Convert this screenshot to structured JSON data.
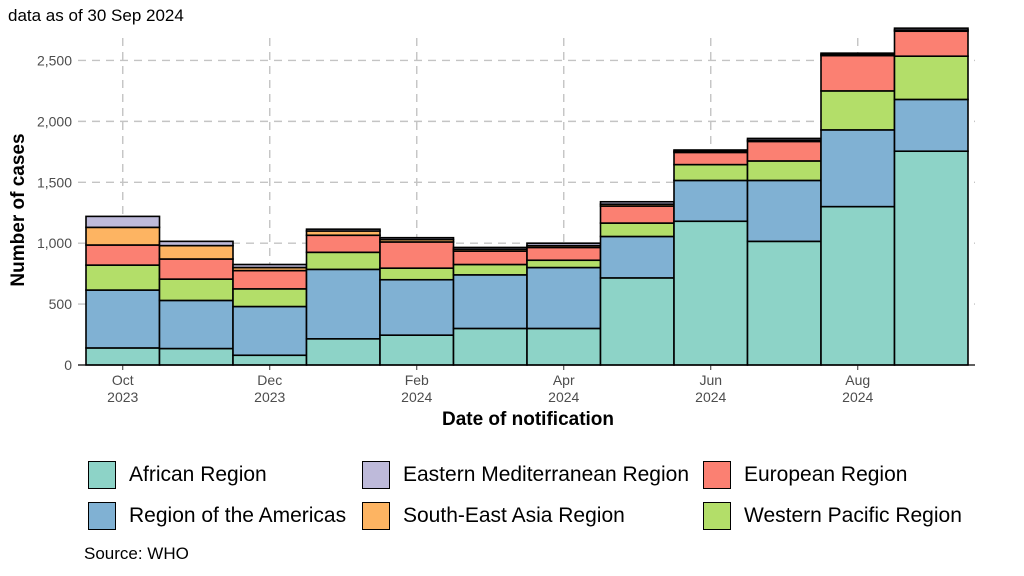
{
  "chart_data": {
    "type": "bar",
    "stacked": true,
    "subtitle": "data as of 30 Sep 2024",
    "caption": "Source: WHO",
    "xlabel": "Date of notification",
    "ylabel": "Number of cases",
    "ylim": [
      0,
      2750
    ],
    "yticks": [
      0,
      500,
      1000,
      1500,
      2000,
      2500
    ],
    "ytick_labels": [
      "0",
      "500",
      "1,000",
      "1,500",
      "2,000",
      "2,500"
    ],
    "xticks": [
      {
        "month": "Oct",
        "year": "2023",
        "at": 0
      },
      {
        "month": "Dec",
        "year": "2023",
        "at": 2
      },
      {
        "month": "Feb",
        "year": "2024",
        "at": 4
      },
      {
        "month": "Apr",
        "year": "2024",
        "at": 6
      },
      {
        "month": "Jun",
        "year": "2024",
        "at": 8
      },
      {
        "month": "Aug",
        "year": "2024",
        "at": 10
      }
    ],
    "grid": true,
    "legend_position": "bottom",
    "categories": [
      "2023-10",
      "2023-11",
      "2023-12",
      "2024-01",
      "2024-02",
      "2024-03",
      "2024-04",
      "2024-05",
      "2024-06",
      "2024-07",
      "2024-08",
      "2024-09"
    ],
    "series": [
      {
        "name": "African Region",
        "color": "#8DD3C7",
        "values": [
          140,
          135,
          80,
          215,
          245,
          300,
          300,
          715,
          1180,
          1015,
          1300,
          1755
        ]
      },
      {
        "name": "Region of the Americas",
        "color": "#80B1D3",
        "values": [
          475,
          395,
          400,
          570,
          455,
          440,
          500,
          340,
          335,
          500,
          630,
          425
        ]
      },
      {
        "name": "Western Pacific Region",
        "color": "#B3DE69",
        "values": [
          205,
          175,
          145,
          140,
          95,
          85,
          60,
          110,
          130,
          160,
          320,
          355
        ]
      },
      {
        "name": "European Region",
        "color": "#FB8072",
        "values": [
          165,
          165,
          150,
          140,
          215,
          110,
          105,
          140,
          100,
          160,
          290,
          205
        ]
      },
      {
        "name": "South-East Asia Region",
        "color": "#FDB462",
        "values": [
          145,
          110,
          25,
          35,
          20,
          15,
          15,
          15,
          10,
          10,
          10,
          10
        ]
      },
      {
        "name": "Eastern Mediterranean Region",
        "color": "#BEBADA",
        "values": [
          90,
          35,
          25,
          15,
          15,
          15,
          20,
          20,
          10,
          15,
          10,
          15
        ]
      }
    ]
  },
  "legend": {
    "items": [
      {
        "label": "African Region",
        "color": "#8DD3C7"
      },
      {
        "label": "Eastern Mediterranean Region",
        "color": "#BEBADA"
      },
      {
        "label": "European Region",
        "color": "#FB8072"
      },
      {
        "label": "Region of the Americas",
        "color": "#80B1D3"
      },
      {
        "label": "South-East Asia Region",
        "color": "#FDB462"
      },
      {
        "label": "Western Pacific Region",
        "color": "#B3DE69"
      }
    ]
  }
}
